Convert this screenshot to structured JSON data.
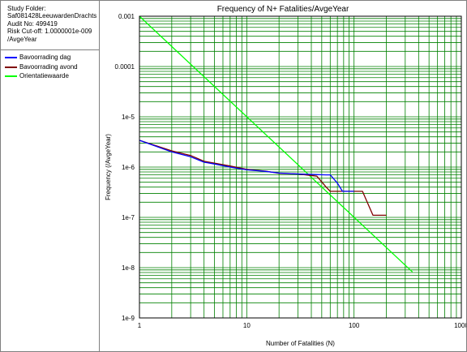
{
  "info": {
    "lines": [
      "Study Folder:",
      "Saf081428LeeuwardenDrachts",
      "Audit No: 499419",
      "Risk Cut-off: 1.0000001e-009",
      "/AvgeYear"
    ]
  },
  "colors": {
    "grid": "#008000",
    "axis": "#000000",
    "bavoorrading_dag": "#0000ff",
    "bavoorrading_avond": "#800000",
    "orientatiewaarde": "#00ff00"
  },
  "chart_data": {
    "type": "line",
    "title": "Frequency of N+ Fatalities/AvgeYear",
    "xlabel": "Number of Fatalities (N)",
    "ylabel": "Frequency (/AvgeYear)",
    "xscale": "log",
    "yscale": "log",
    "xlim": [
      1,
      1000
    ],
    "ylim": [
      1e-09,
      0.001
    ],
    "grid": true,
    "legend_position": "left-panel",
    "x_tick_labels": [
      {
        "value": 1,
        "label": "1"
      },
      {
        "value": 10,
        "label": "10"
      },
      {
        "value": 100,
        "label": "100"
      },
      {
        "value": 1000,
        "label": "1000"
      }
    ],
    "y_tick_labels": [
      {
        "value": 0.001,
        "label": "0.001"
      },
      {
        "value": 0.0001,
        "label": "0.0001"
      },
      {
        "value": 1e-05,
        "label": "1e-5"
      },
      {
        "value": 1e-06,
        "label": "1e-6"
      },
      {
        "value": 1e-07,
        "label": "1e-7"
      },
      {
        "value": 1e-08,
        "label": "1e-8"
      },
      {
        "value": 1e-09,
        "label": "1e-9"
      }
    ],
    "series": [
      {
        "name": "Bavoorrading dag",
        "color_key": "bavoorrading_dag",
        "points": [
          [
            1,
            3.4e-06
          ],
          [
            2,
            2e-06
          ],
          [
            3,
            1.6e-06
          ],
          [
            4,
            1.25e-06
          ],
          [
            5,
            1.15e-06
          ],
          [
            7,
            1e-06
          ],
          [
            10,
            8.8e-07
          ],
          [
            15,
            8.2e-07
          ],
          [
            20,
            7.6e-07
          ],
          [
            30,
            7.3e-07
          ],
          [
            55,
            7e-07
          ],
          [
            60,
            7e-07
          ],
          [
            70,
            4.8e-07
          ],
          [
            78,
            3.3e-07
          ],
          [
            100,
            3.3e-07
          ]
        ]
      },
      {
        "name": "Bavoorrading avond",
        "color_key": "bavoorrading_avond",
        "points": [
          [
            1,
            3.4e-06
          ],
          [
            2,
            2.1e-06
          ],
          [
            3,
            1.7e-06
          ],
          [
            4,
            1.3e-06
          ],
          [
            5,
            1.2e-06
          ],
          [
            7,
            1.05e-06
          ],
          [
            10,
            9e-07
          ],
          [
            15,
            8.3e-07
          ],
          [
            20,
            7.5e-07
          ],
          [
            30,
            7.3e-07
          ],
          [
            45,
            6.6e-07
          ],
          [
            55,
            4e-07
          ],
          [
            60,
            3.3e-07
          ],
          [
            80,
            3.3e-07
          ],
          [
            110,
            3.3e-07
          ],
          [
            120,
            3.3e-07
          ],
          [
            150,
            1.1e-07
          ],
          [
            200,
            1.1e-07
          ]
        ]
      },
      {
        "name": "Orientatiewaarde",
        "color_key": "orientatiewaarde",
        "points": [
          [
            1,
            0.001
          ],
          [
            350,
            8.2e-09
          ]
        ]
      }
    ]
  }
}
